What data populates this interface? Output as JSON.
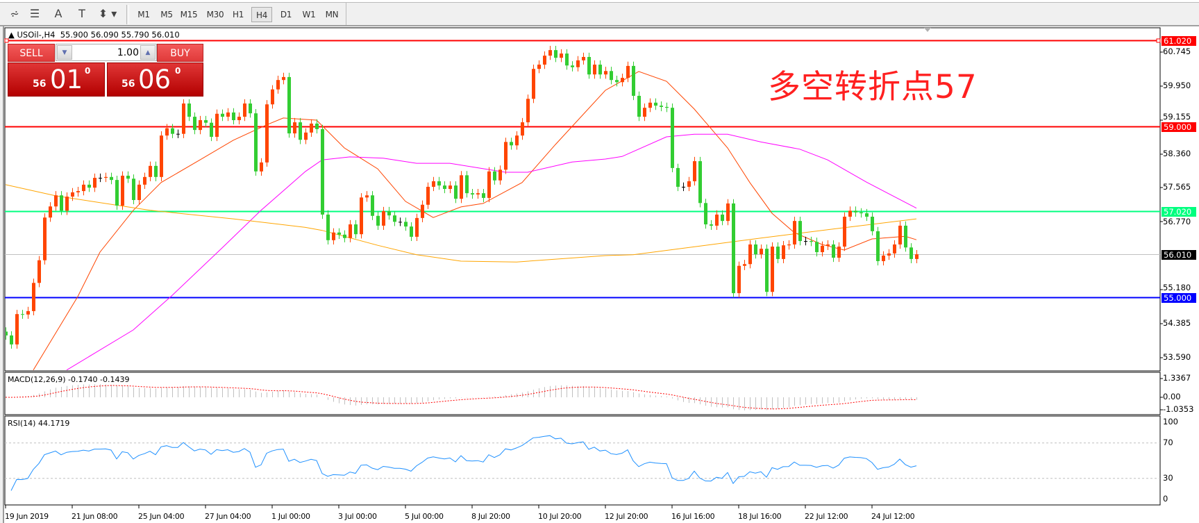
{
  "toolbar": {
    "left_icons": [
      "chart-objects-icon",
      "fibonacci-icon",
      "text-icon",
      "text-label-icon",
      "arrows-icon"
    ],
    "left_icon_glyphs": [
      "⩫",
      "☰",
      "A",
      "T",
      "⬍"
    ],
    "timeframes": [
      "M1",
      "M5",
      "M15",
      "M30",
      "H1",
      "H4",
      "D1",
      "W1",
      "MN"
    ],
    "selected_timeframe": "H4"
  },
  "chart": {
    "title": "USOil-,H4  55.900 56.090 55.790 56.010",
    "annotation": "多空转折点57"
  },
  "trade_panel": {
    "sell_label": "SELL",
    "buy_label": "BUY",
    "volume": "1.00",
    "sell_price": {
      "prefix": "56",
      "main": "01",
      "sup": "0"
    },
    "buy_price": {
      "prefix": "56",
      "main": "06",
      "sup": "0"
    }
  },
  "colors": {
    "bull_candle": "#ff4500",
    "bear_candle": "#32cd32",
    "ma_fast": "#ff4500",
    "ma_mid": "#ff00ff",
    "ma_slow": "#ffa500",
    "rsi_line": "#1e90ff",
    "macd_hist": "#c0c0c0",
    "macd_signal": "#ff0000"
  },
  "price_axis": {
    "ticks": [
      "60.745",
      "59.950",
      "59.155",
      "58.360",
      "57.565",
      "56.770",
      "55.180",
      "54.385",
      "53.590"
    ],
    "levels": [
      {
        "price": "61.020",
        "color": "#ff0000"
      },
      {
        "price": "59.000",
        "color": "#ff0000"
      },
      {
        "price": "57.020",
        "color": "#00ff7f"
      },
      {
        "price": "56.010",
        "color": "#000000",
        "line": "#c0c0c0"
      },
      {
        "price": "55.000",
        "color": "#0000ff"
      }
    ]
  },
  "macd": {
    "label": "MACD(12,26,9) -0.1740 -0.1439",
    "ticks": [
      "1.3367",
      "0.00",
      "-1.0353"
    ]
  },
  "rsi": {
    "label": "RSI(14) 44.1719",
    "ticks": [
      "100",
      "70",
      "30",
      "0"
    ],
    "levels": [
      70,
      30
    ]
  },
  "time_axis": [
    "19 Jun 2019",
    "21 Jun 08:00",
    "25 Jun 04:00",
    "27 Jun 04:00",
    "1 Jul 00:00",
    "3 Jul 00:00",
    "5 Jul 00:00",
    "8 Jul 20:00",
    "10 Jul 20:00",
    "12 Jul 20:00",
    "16 Jul 16:00",
    "18 Jul 16:00",
    "22 Jul 12:00",
    "24 Jul 12:00"
  ],
  "chart_data": {
    "type": "candlestick",
    "symbol": "USOil-",
    "timeframe": "H4",
    "ylim": [
      53.2,
      61.1
    ],
    "first_open": 54.2,
    "close": [
      54.11,
      53.9,
      54.61,
      54.6,
      54.68,
      55.34,
      55.87,
      56.87,
      57.13,
      57.39,
      57.03,
      57.36,
      57.46,
      57.49,
      57.64,
      57.57,
      57.8,
      57.8,
      57.82,
      57.75,
      57.15,
      57.85,
      57.78,
      57.28,
      57.64,
      57.82,
      58.08,
      57.82,
      58.79,
      58.96,
      58.83,
      58.83,
      59.54,
      59.23,
      58.92,
      59.15,
      59.09,
      58.76,
      59.3,
      59.23,
      59.33,
      59.15,
      59.23,
      59.54,
      59.31,
      57.95,
      58.16,
      59.52,
      59.87,
      60.09,
      60.16,
      58.84,
      59.1,
      58.69,
      58.86,
      59.07,
      58.94,
      56.94,
      56.34,
      56.52,
      56.47,
      56.39,
      56.71,
      56.48,
      57.34,
      57.39,
      56.91,
      56.68,
      57.02,
      56.92,
      56.77,
      56.77,
      56.66,
      56.42,
      56.86,
      57.17,
      57.59,
      57.72,
      57.62,
      57.54,
      57.62,
      57.31,
      57.86,
      57.44,
      57.41,
      57.44,
      57.33,
      57.95,
      57.74,
      57.99,
      58.64,
      58.56,
      58.79,
      59.1,
      59.65,
      60.35,
      60.45,
      60.66,
      60.79,
      60.61,
      60.71,
      60.43,
      60.39,
      60.55,
      60.63,
      60.22,
      60.45,
      60.22,
      60.3,
      60.09,
      60.04,
      60.14,
      60.42,
      59.72,
      59.23,
      59.44,
      59.56,
      59.49,
      59.46,
      59.44,
      58.03,
      57.59,
      57.59,
      57.72,
      58.19,
      57.21,
      56.71,
      56.68,
      56.94,
      56.79,
      57.2,
      55.1,
      55.74,
      55.78,
      56.24,
      56.01,
      56.14,
      55.13,
      56.19,
      55.9,
      56.22,
      56.24,
      56.79,
      56.32,
      56.32,
      56.3,
      56.06,
      56.21,
      56.24,
      55.93,
      56.19,
      56.89,
      57.03,
      56.99,
      56.97,
      56.89,
      56.55,
      55.85,
      55.98,
      56.03,
      56.24,
      56.68,
      56.17,
      55.9,
      56.01
    ],
    "moving_averages": [
      {
        "key": "ma_fast",
        "points": [
          [
            6,
            53.3
          ],
          [
            14,
            55.02
          ],
          [
            18,
            56.06
          ],
          [
            24,
            57.04
          ],
          [
            29,
            57.69
          ],
          [
            36,
            58.22
          ],
          [
            42,
            58.68
          ],
          [
            48,
            59.04
          ],
          [
            51,
            59.2
          ],
          [
            57,
            59.15
          ],
          [
            62,
            58.5
          ],
          [
            68,
            58.01
          ],
          [
            73,
            57.25
          ],
          [
            78,
            56.87
          ],
          [
            83,
            57.12
          ],
          [
            87,
            57.2
          ],
          [
            94,
            57.69
          ],
          [
            100,
            58.58
          ],
          [
            109,
            59.85
          ],
          [
            115,
            60.29
          ],
          [
            120,
            60.06
          ],
          [
            125,
            59.41
          ],
          [
            131,
            58.5
          ],
          [
            135,
            57.69
          ],
          [
            139,
            56.97
          ],
          [
            143,
            56.52
          ],
          [
            148,
            56.24
          ],
          [
            152,
            56.11
          ],
          [
            157,
            56.37
          ],
          [
            163,
            56.43
          ],
          [
            165,
            56.35
          ]
        ]
      },
      {
        "key": "ma_mid",
        "points": [
          [
            12,
            53.3
          ],
          [
            24,
            54.24
          ],
          [
            31,
            55.05
          ],
          [
            40,
            56.16
          ],
          [
            47,
            57.04
          ],
          [
            55,
            57.95
          ],
          [
            58,
            58.22
          ],
          [
            63,
            58.29
          ],
          [
            69,
            58.26
          ],
          [
            75,
            58.14
          ],
          [
            81,
            58.14
          ],
          [
            91,
            57.93
          ],
          [
            95,
            57.93
          ],
          [
            103,
            58.17
          ],
          [
            109,
            58.24
          ],
          [
            112,
            58.3
          ],
          [
            120,
            58.76
          ],
          [
            125,
            58.82
          ],
          [
            131,
            58.82
          ],
          [
            137,
            58.64
          ],
          [
            144,
            58.47
          ],
          [
            149,
            58.22
          ],
          [
            156,
            57.7
          ],
          [
            165,
            57.09
          ]
        ]
      },
      {
        "key": "ma_slow",
        "points": [
          [
            1,
            57.64
          ],
          [
            10,
            57.38
          ],
          [
            27,
            57.04
          ],
          [
            42,
            56.84
          ],
          [
            55,
            56.64
          ],
          [
            58,
            56.57
          ],
          [
            68,
            56.22
          ],
          [
            75,
            56.0
          ],
          [
            83,
            55.85
          ],
          [
            93,
            55.83
          ],
          [
            109,
            55.98
          ],
          [
            114,
            56.0
          ],
          [
            127,
            56.22
          ],
          [
            137,
            56.39
          ],
          [
            150,
            56.6
          ],
          [
            165,
            56.84
          ]
        ]
      }
    ]
  }
}
